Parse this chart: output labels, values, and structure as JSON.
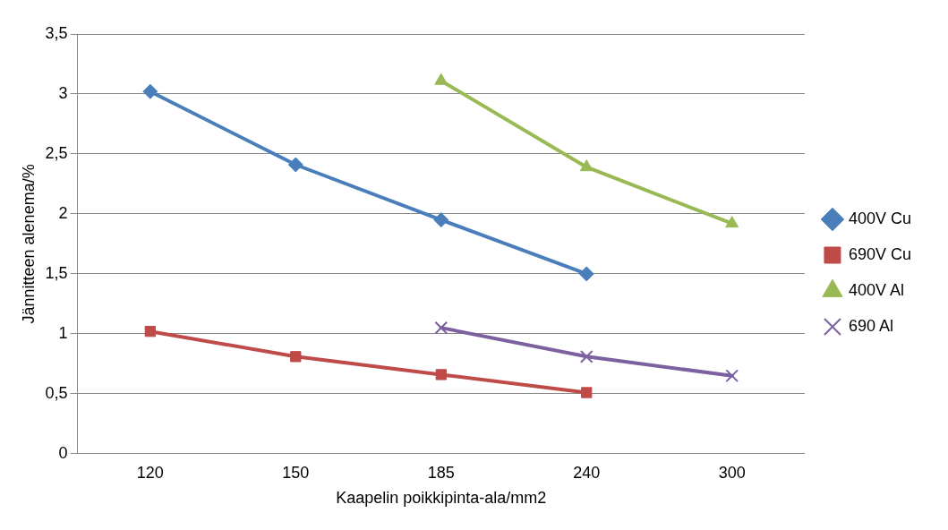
{
  "chart_data": {
    "type": "line",
    "xlabel": "Kaapelin poikkipinta-ala/mm2",
    "ylabel": "Jännitteen alenema/%",
    "categories": [
      "120",
      "150",
      "185",
      "240",
      "300"
    ],
    "series": [
      {
        "name": "400V Cu",
        "color": "#4a7ebb",
        "marker": "diamond",
        "values": [
          3.02,
          2.41,
          1.95,
          1.5,
          null
        ]
      },
      {
        "name": "690V Cu",
        "color": "#be4b48",
        "marker": "square",
        "values": [
          1.02,
          0.81,
          0.66,
          0.51,
          null
        ]
      },
      {
        "name": "400V Al",
        "color": "#98b954",
        "marker": "triangle",
        "values": [
          null,
          null,
          3.11,
          2.39,
          1.92
        ]
      },
      {
        "name": "690 Al",
        "color": "#7d60a0",
        "marker": "cross",
        "values": [
          null,
          null,
          1.05,
          0.81,
          0.65
        ]
      }
    ],
    "ylim": [
      0,
      3.5
    ],
    "yticks": [
      0,
      {
        "value": 0.5,
        "label": "0,5"
      },
      1,
      {
        "value": 1.5,
        "label": "1,5"
      },
      2,
      {
        "value": 2.5,
        "label": "2,5"
      },
      3,
      {
        "value": 3.5,
        "label": "3,5"
      }
    ],
    "grid": "y",
    "legend": "right",
    "line_style": "solid"
  }
}
